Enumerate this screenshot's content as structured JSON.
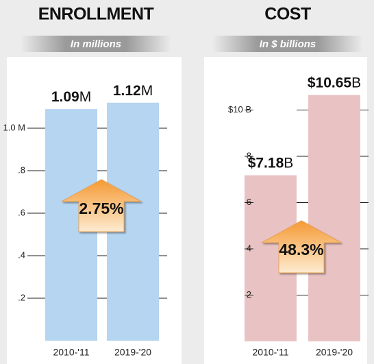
{
  "chart_data": [
    {
      "type": "bar",
      "title": "ENROLLMENT",
      "subtitle": "In millions",
      "categories": [
        "2010-'11",
        "2019-'20"
      ],
      "values": [
        1.09,
        1.12
      ],
      "value_labels": [
        "1.09M",
        "1.12M"
      ],
      "color": "#b5d5f0",
      "ylim": [
        0,
        1.2
      ],
      "yticks": [
        {
          "value": 0.2,
          "label": ".2"
        },
        {
          "value": 0.4,
          "label": ".4"
        },
        {
          "value": 0.6,
          "label": ".6"
        },
        {
          "value": 0.8,
          "label": ".8"
        },
        {
          "value": 1.0,
          "label": "1.0 M"
        }
      ],
      "annotation": "2.75%"
    },
    {
      "type": "bar",
      "title": "COST",
      "subtitle": "In $ billions",
      "categories": [
        "2010-'11",
        "2019-'20"
      ],
      "values": [
        7.18,
        10.65
      ],
      "value_labels": [
        "$7.18B",
        "$10.65B"
      ],
      "color": "#e9c3c4",
      "ylim": [
        0,
        12
      ],
      "yticks": [
        2,
        4,
        6,
        8,
        {
          "value": 10,
          "label": "$10 B"
        }
      ],
      "annotation": "48.3%"
    }
  ]
}
